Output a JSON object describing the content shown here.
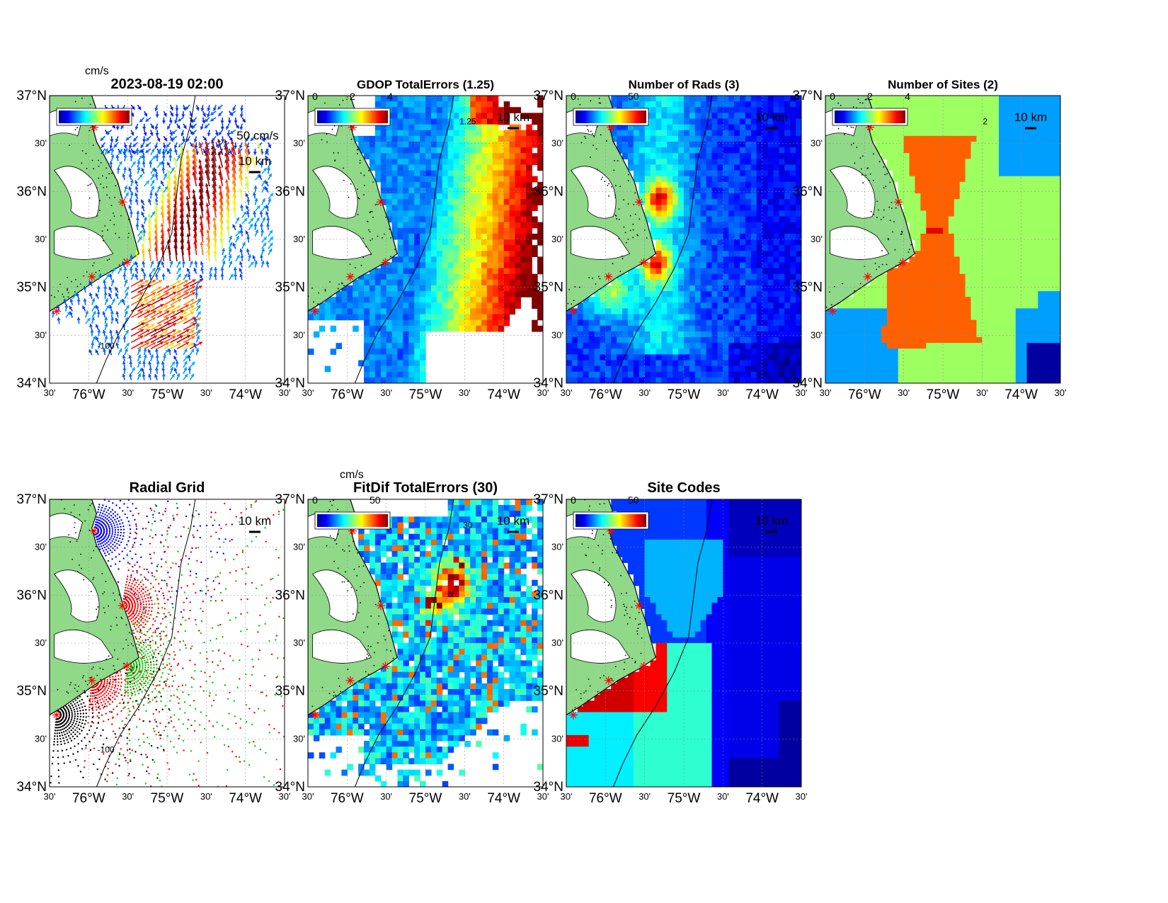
{
  "figure": {
    "panels": [
      {
        "id": "vectors",
        "title": "2023-08-19 02:00",
        "scale_label": "50 cm/s",
        "distance_label": "10 km",
        "colorbar_unit": "cm/s",
        "colorbar_ticks": [],
        "render": "vectors",
        "contour_label": "-100"
      },
      {
        "id": "gdop",
        "title": "GDOP TotalErrors (1.25)",
        "distance_label": "10 km",
        "colorbar_unit": "",
        "colorbar_ticks": [
          "0",
          "2",
          "4"
        ],
        "render": "field",
        "palette": "gdop",
        "contour_label": "1.25"
      },
      {
        "id": "nrads",
        "title": "Number of Rads (3)",
        "distance_label": "10 km",
        "colorbar_unit": "",
        "colorbar_ticks": [
          "0",
          "50"
        ],
        "render": "field",
        "palette": "rads"
      },
      {
        "id": "nsites",
        "title": "Number of Sites (2)",
        "distance_label": "10 km",
        "colorbar_unit": "",
        "colorbar_ticks": [
          "0",
          "2",
          "4"
        ],
        "render": "field",
        "palette": "sites",
        "contour_label": "2"
      },
      {
        "id": "radgrid",
        "title": "Radial Grid",
        "distance_label": "10 km",
        "colorbar_unit": "",
        "colorbar_ticks": [],
        "render": "radial",
        "contour_label": "-100"
      },
      {
        "id": "fitdif",
        "title": "FitDif TotalErrors (30)",
        "distance_label": "10 km",
        "colorbar_unit": "cm/s",
        "colorbar_ticks": [
          "0",
          "50"
        ],
        "render": "field",
        "palette": "fitdif",
        "contour_label": "30"
      },
      {
        "id": "sitecodes",
        "title": "Site Codes",
        "distance_label": "10 km",
        "colorbar_unit": "",
        "colorbar_ticks": [
          "0",
          "50"
        ],
        "render": "field",
        "palette": "codes"
      }
    ],
    "lat_ticks": [
      "37°N",
      "30'",
      "36°N",
      "30'",
      "35°N",
      "30'",
      "34°N"
    ],
    "lon_ticks": [
      "30'",
      "76°W",
      "30'",
      "75°W",
      "30'",
      "74°W",
      "30'"
    ],
    "land_color": "#8fd989",
    "colormap_jet": [
      "#00008f",
      "#0000ff",
      "#0080ff",
      "#00ffff",
      "#80ff80",
      "#ffff00",
      "#ff8000",
      "#ff0000",
      "#800000"
    ],
    "radial_site_colors": [
      "#0000ff",
      "#ff0000",
      "#00c800",
      "#ff0000",
      "#000000"
    ]
  },
  "chart_data": [
    {
      "type": "quiver",
      "title": "2023-08-19 02:00",
      "xlim": [
        "76°30'W",
        "73°30'W"
      ],
      "ylim": [
        "34°N",
        "37°N"
      ],
      "units": "cm/s",
      "scale": "50 cm/s"
    },
    {
      "type": "heatmap",
      "title": "GDOP TotalErrors (1.25)",
      "colorbar_range": [
        0,
        4
      ],
      "contour": 1.25
    },
    {
      "type": "heatmap",
      "title": "Number of Rads (3)",
      "colorbar_range": [
        0,
        50
      ]
    },
    {
      "type": "heatmap",
      "title": "Number of Sites (2)",
      "colorbar_range": [
        0,
        4
      ],
      "contour": 2
    },
    {
      "type": "scatter",
      "title": "Radial Grid",
      "series": [
        {
          "name": "",
          "color": "blue"
        },
        {
          "name": "",
          "color": "red"
        },
        {
          "name": "",
          "color": "green"
        },
        {
          "name": "",
          "color": "black"
        }
      ]
    },
    {
      "type": "heatmap",
      "title": "FitDif TotalErrors (30)",
      "colorbar_range": [
        0,
        50
      ],
      "units": "cm/s",
      "contour": 30
    },
    {
      "type": "heatmap",
      "title": "Site Codes",
      "colorbar_range": [
        0,
        50
      ]
    }
  ]
}
